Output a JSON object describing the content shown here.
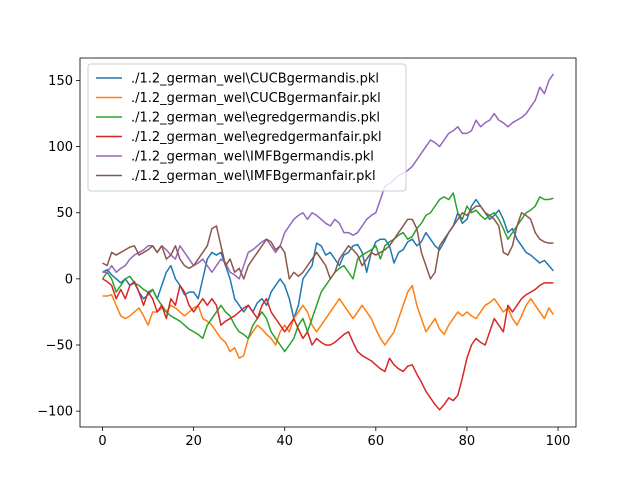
{
  "chart_data": {
    "type": "line",
    "x": [
      0,
      1,
      2,
      3,
      4,
      5,
      6,
      7,
      8,
      9,
      10,
      11,
      12,
      13,
      14,
      15,
      16,
      17,
      18,
      19,
      20,
      21,
      22,
      23,
      24,
      25,
      26,
      27,
      28,
      29,
      30,
      31,
      32,
      33,
      34,
      35,
      36,
      37,
      38,
      39,
      40,
      41,
      42,
      43,
      44,
      45,
      46,
      47,
      48,
      49,
      50,
      51,
      52,
      53,
      54,
      55,
      56,
      57,
      58,
      59,
      60,
      61,
      62,
      63,
      64,
      65,
      66,
      67,
      68,
      69,
      70,
      71,
      72,
      73,
      74,
      75,
      76,
      77,
      78,
      79,
      80,
      81,
      82,
      83,
      84,
      85,
      86,
      87,
      88,
      89,
      90,
      91,
      92,
      93,
      94,
      95,
      96,
      97,
      98,
      99
    ],
    "xlim": [
      -4.95,
      103.95
    ],
    "xticks": [
      0,
      20,
      40,
      60,
      80,
      100
    ],
    "ylim": [
      -112,
      167
    ],
    "yticks": [
      {
        "value": -100,
        "label": "−100"
      },
      {
        "value": -50,
        "label": "−50"
      },
      0,
      50,
      100,
      150
    ],
    "legend": "upper left",
    "series": [
      {
        "name": "./1.2_german_wel\\CUCBgermandis.pkl",
        "color": "#1f77b4",
        "values": [
          5,
          7,
          3,
          0,
          -3,
          0,
          -5,
          -3,
          -10,
          -15,
          -12,
          -8,
          -15,
          -5,
          5,
          10,
          0,
          -5,
          -12,
          -10,
          -10,
          -15,
          0,
          15,
          20,
          18,
          20,
          10,
          0,
          -15,
          -20,
          -25,
          -20,
          -25,
          -18,
          -15,
          -20,
          -10,
          -5,
          0,
          -5,
          -15,
          -30,
          -20,
          0,
          5,
          10,
          27,
          25,
          18,
          20,
          15,
          10,
          18,
          20,
          25,
          26,
          20,
          5,
          20,
          28,
          30,
          30,
          25,
          12,
          20,
          22,
          28,
          30,
          25,
          28,
          35,
          30,
          25,
          22,
          28,
          35,
          40,
          50,
          42,
          45,
          55,
          60,
          55,
          50,
          45,
          48,
          52,
          45,
          35,
          38,
          30,
          25,
          20,
          18,
          15,
          12,
          14,
          10,
          6
        ]
      },
      {
        "name": "./1.2_german_wel\\CUCBgermanfair.pkl",
        "color": "#ff7f0e",
        "values": [
          -13,
          -13,
          -12,
          -20,
          -28,
          -30,
          -28,
          -25,
          -22,
          -28,
          -35,
          -25,
          -25,
          -22,
          -25,
          -20,
          -22,
          -25,
          -28,
          -25,
          -22,
          -20,
          -30,
          -32,
          -35,
          -40,
          -45,
          -48,
          -55,
          -52,
          -60,
          -58,
          -45,
          -40,
          -35,
          -38,
          -42,
          -45,
          -50,
          -40,
          -35,
          -40,
          -30,
          -25,
          -20,
          -25,
          -35,
          -40,
          -35,
          -30,
          -25,
          -20,
          -15,
          -20,
          -25,
          -30,
          -25,
          -20,
          -25,
          -30,
          -38,
          -45,
          -50,
          -45,
          -40,
          -30,
          -20,
          -10,
          -5,
          -20,
          -30,
          -40,
          -35,
          -30,
          -38,
          -42,
          -35,
          -30,
          -25,
          -28,
          -25,
          -28,
          -30,
          -25,
          -20,
          -18,
          -15,
          -20,
          -25,
          -22,
          -30,
          -35,
          -28,
          -20,
          -15,
          -20,
          -25,
          -30,
          -22,
          -27
        ]
      },
      {
        "name": "./1.2_german_wel\\egredgermandis.pkl",
        "color": "#2ca02c",
        "values": [
          0,
          5,
          0,
          -10,
          -5,
          0,
          2,
          -3,
          -5,
          -8,
          -10,
          -8,
          -15,
          -20,
          -25,
          -28,
          -30,
          -32,
          -35,
          -38,
          -40,
          -42,
          -45,
          -35,
          -30,
          -25,
          -20,
          -25,
          -28,
          -35,
          -40,
          -42,
          -45,
          -35,
          -30,
          -25,
          -30,
          -40,
          -45,
          -50,
          -55,
          -50,
          -45,
          -35,
          -30,
          -40,
          -30,
          -20,
          -10,
          -5,
          0,
          5,
          8,
          10,
          5,
          0,
          15,
          18,
          20,
          22,
          25,
          15,
          25,
          28,
          30,
          33,
          35,
          30,
          32,
          38,
          42,
          48,
          50,
          55,
          60,
          62,
          60,
          65,
          50,
          45,
          55,
          50,
          52,
          48,
          45,
          48,
          50,
          45,
          38,
          30,
          35,
          40,
          45,
          50,
          52,
          55,
          62,
          60,
          60,
          61
        ]
      },
      {
        "name": "./1.2_german_wel\\egredgermanfair.pkl",
        "color": "#d62728",
        "values": [
          0,
          -2,
          -5,
          -15,
          -8,
          -15,
          -5,
          -2,
          -10,
          -20,
          -10,
          -15,
          -25,
          -20,
          -30,
          -15,
          -20,
          -5,
          -10,
          -20,
          -25,
          -20,
          -15,
          -20,
          -15,
          -20,
          -35,
          -32,
          -30,
          -28,
          -25,
          -22,
          -20,
          -25,
          -30,
          -20,
          -15,
          -25,
          -30,
          -35,
          -40,
          -35,
          -30,
          -38,
          -45,
          -40,
          -50,
          -45,
          -48,
          -50,
          -50,
          -48,
          -45,
          -42,
          -40,
          -48,
          -55,
          -58,
          -60,
          -62,
          -65,
          -68,
          -70,
          -60,
          -65,
          -68,
          -70,
          -66,
          -65,
          -72,
          -78,
          -85,
          -90,
          -95,
          -99,
          -95,
          -90,
          -92,
          -88,
          -75,
          -60,
          -50,
          -45,
          -48,
          -50,
          -40,
          -30,
          -35,
          -40,
          -20,
          -25,
          -20,
          -15,
          -12,
          -10,
          -8,
          -5,
          -3,
          -3,
          -3
        ]
      },
      {
        "name": "./1.2_german_wel\\IMFBgermandis.pkl",
        "color": "#9467bd",
        "values": [
          5,
          5,
          10,
          5,
          8,
          10,
          15,
          18,
          20,
          22,
          25,
          25,
          20,
          25,
          22,
          18,
          15,
          25,
          20,
          15,
          10,
          12,
          15,
          10,
          5,
          10,
          15,
          12,
          5,
          3,
          0,
          10,
          20,
          22,
          25,
          28,
          30,
          25,
          20,
          25,
          35,
          40,
          45,
          48,
          50,
          45,
          50,
          48,
          45,
          42,
          40,
          45,
          42,
          35,
          35,
          33,
          35,
          40,
          45,
          48,
          50,
          60,
          70,
          72,
          75,
          78,
          80,
          82,
          85,
          90,
          95,
          100,
          105,
          103,
          100,
          105,
          110,
          112,
          115,
          110,
          110,
          112,
          120,
          115,
          118,
          120,
          125,
          120,
          118,
          115,
          118,
          120,
          122,
          125,
          130,
          135,
          145,
          140,
          150,
          155
        ]
      },
      {
        "name": "./1.2_german_wel\\IMFBgermanfair.pkl",
        "color": "#8c564b",
        "values": [
          12,
          10,
          20,
          18,
          20,
          22,
          24,
          25,
          18,
          20,
          22,
          25,
          20,
          25,
          15,
          18,
          25,
          15,
          10,
          8,
          10,
          15,
          20,
          25,
          38,
          40,
          25,
          10,
          15,
          5,
          8,
          0,
          10,
          15,
          20,
          25,
          30,
          28,
          22,
          25,
          20,
          0,
          5,
          2,
          5,
          10,
          15,
          20,
          15,
          10,
          0,
          5,
          15,
          20,
          25,
          22,
          18,
          10,
          15,
          20,
          18,
          20,
          22,
          25,
          30,
          35,
          40,
          45,
          45,
          38,
          20,
          10,
          0,
          5,
          25,
          30,
          35,
          40,
          45,
          50,
          48,
          52,
          55,
          55,
          50,
          48,
          45,
          40,
          20,
          18,
          25,
          40,
          50,
          48,
          45,
          35,
          30,
          28,
          27,
          27
        ]
      }
    ]
  }
}
